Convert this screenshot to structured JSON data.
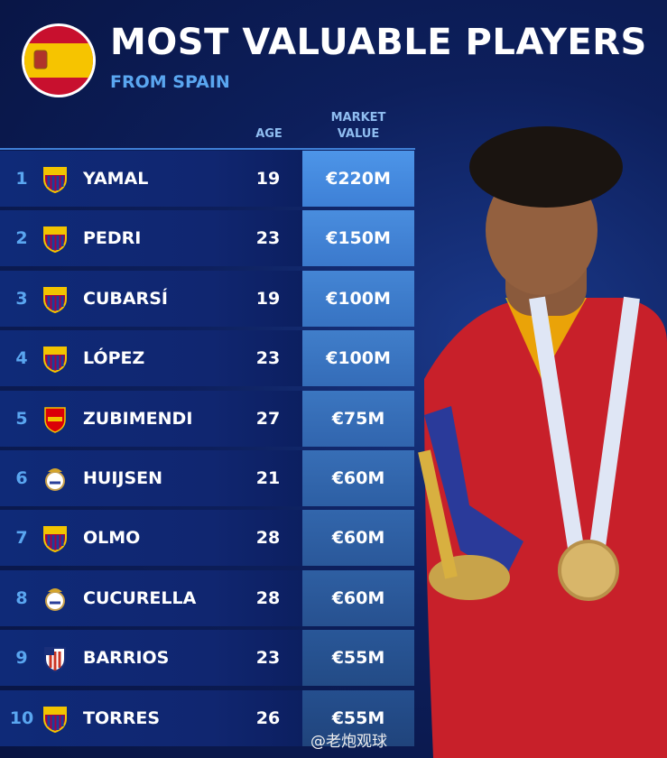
{
  "header": {
    "title": "MOST VALUABLE PLAYERS",
    "subtitle": "FROM SPAIN"
  },
  "table": {
    "columns": [
      "AGE",
      "MARKET VALUE"
    ],
    "rows": [
      [
        1,
        "YAMAL",
        19,
        "€220M"
      ],
      [
        2,
        "PEDRI",
        23,
        "€150M"
      ],
      [
        3,
        "CUBARSÍ",
        19,
        "€100M"
      ],
      [
        4,
        "LÓPEZ",
        23,
        "€100M"
      ],
      [
        5,
        "ZUBIMENDI",
        27,
        "€75M"
      ],
      [
        6,
        "HUIJSEN",
        21,
        "€60M"
      ],
      [
        7,
        "OLMO",
        28,
        "€60M"
      ],
      [
        8,
        "CUCURELLA",
        28,
        "€60M"
      ],
      [
        9,
        "BARRIOS",
        23,
        "€55M"
      ],
      [
        10,
        "TORRES",
        26,
        "€55M"
      ]
    ]
  },
  "watermark": "@老炮观球"
}
